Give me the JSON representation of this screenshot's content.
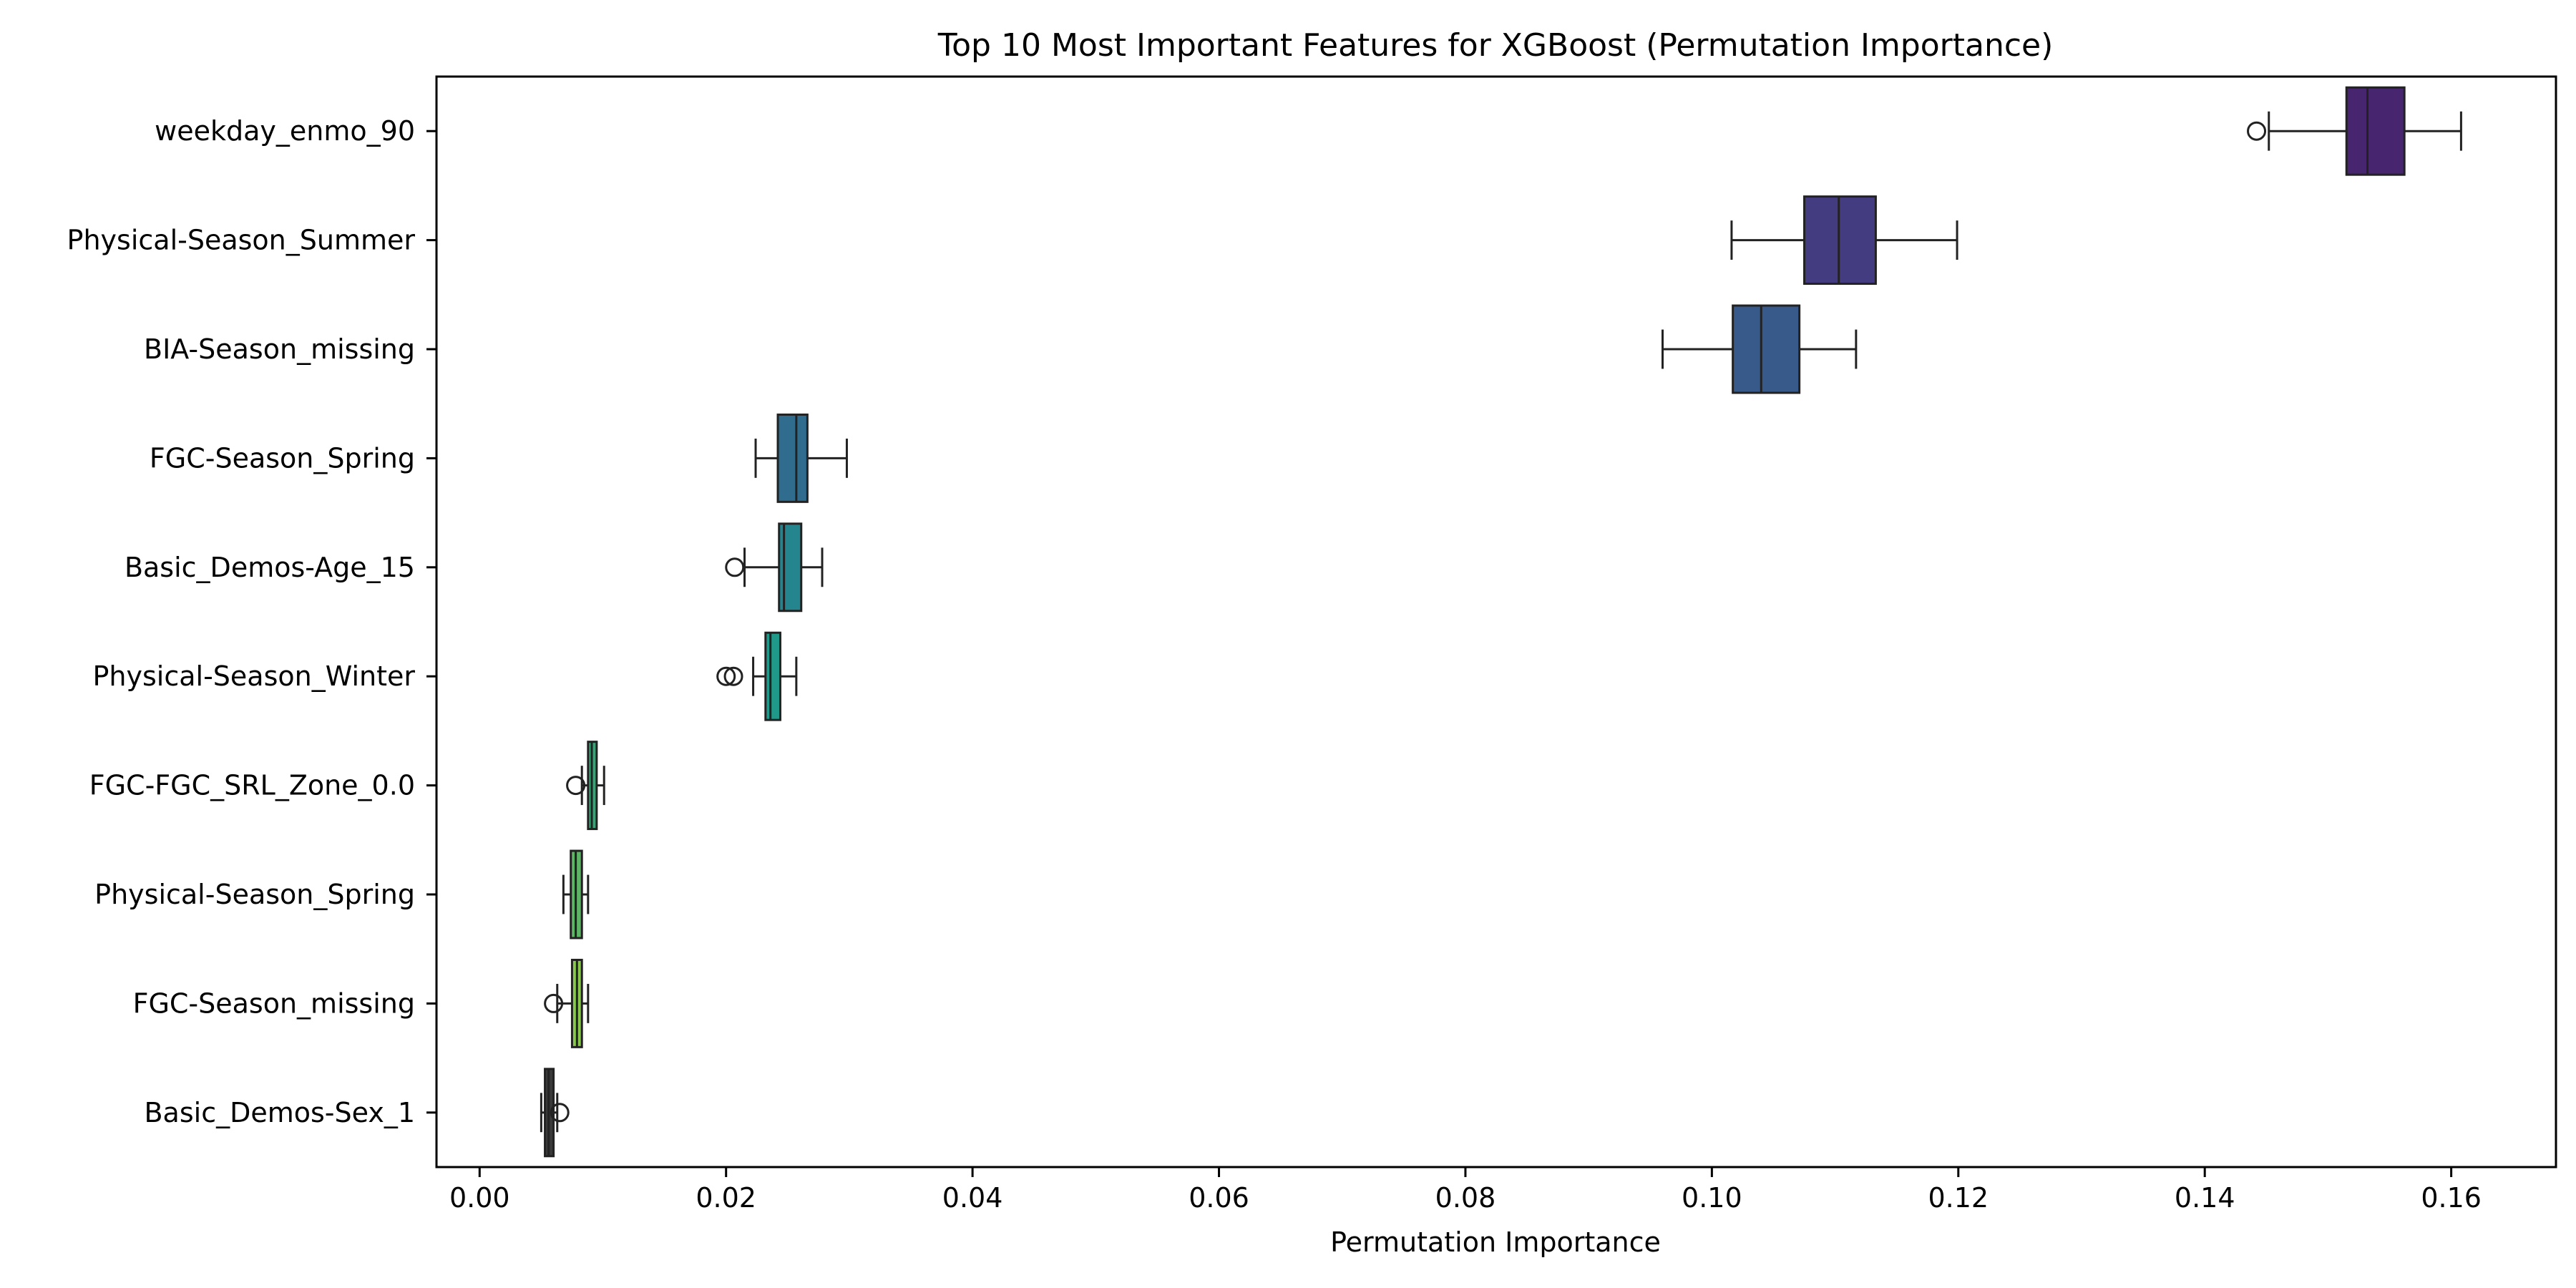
{
  "chart_data": {
    "type": "boxplot",
    "title": "Top 10 Most Important Features for XGBoost (Permutation Importance)",
    "xlabel": "Permutation Importance",
    "ylabel": "",
    "xlim": [
      -0.0035,
      0.1685
    ],
    "xticks": [
      0.0,
      0.02,
      0.04,
      0.06,
      0.08,
      0.1,
      0.12,
      0.14,
      0.16
    ],
    "xtick_labels": [
      "0.00",
      "0.02",
      "0.04",
      "0.06",
      "0.08",
      "0.10",
      "0.12",
      "0.14",
      "0.16"
    ],
    "grid": false,
    "orientation": "horizontal",
    "categories": [
      "weekday_enmo_90",
      "Physical-Season_Summer",
      "BIA-Season_missing",
      "FGC-Season_Spring",
      "Basic_Demos-Age_15",
      "Physical-Season_Winter",
      "FGC-FGC_SRL_Zone_0.0",
      "Physical-Season_Spring",
      "FGC-Season_missing",
      "Basic_Demos-Sex_1"
    ],
    "boxes": [
      {
        "whisker_low": 0.1452,
        "q1": 0.1515,
        "median": 0.1532,
        "q3": 0.1562,
        "whisker_high": 0.1608,
        "outliers": [
          0.1442
        ],
        "color": "#47266f"
      },
      {
        "whisker_low": 0.1016,
        "q1": 0.1075,
        "median": 0.1103,
        "q3": 0.1133,
        "whisker_high": 0.1199,
        "outliers": [],
        "color": "#443c81"
      },
      {
        "whisker_low": 0.096,
        "q1": 0.1017,
        "median": 0.104,
        "q3": 0.1071,
        "whisker_high": 0.1117,
        "outliers": [],
        "color": "#375a8b"
      },
      {
        "whisker_low": 0.0224,
        "q1": 0.0242,
        "median": 0.0257,
        "q3": 0.0266,
        "whisker_high": 0.0298,
        "outliers": [],
        "color": "#2f6c8e"
      },
      {
        "whisker_low": 0.0215,
        "q1": 0.0243,
        "median": 0.0247,
        "q3": 0.0261,
        "whisker_high": 0.0278,
        "outliers": [
          0.0207
        ],
        "color": "#25858e"
      },
      {
        "whisker_low": 0.0222,
        "q1": 0.0232,
        "median": 0.0236,
        "q3": 0.0244,
        "whisker_high": 0.0257,
        "outliers": [
          0.02,
          0.0206
        ],
        "color": "#1f9a8a"
      },
      {
        "whisker_low": 0.0083,
        "q1": 0.0088,
        "median": 0.0091,
        "q3": 0.0095,
        "whisker_high": 0.0101,
        "outliers": [
          0.0078
        ],
        "color": "#32a675"
      },
      {
        "whisker_low": 0.0068,
        "q1": 0.0074,
        "median": 0.0078,
        "q3": 0.0083,
        "whisker_high": 0.0088,
        "outliers": [],
        "color": "#5db565"
      },
      {
        "whisker_low": 0.0063,
        "q1": 0.0075,
        "median": 0.0079,
        "q3": 0.0083,
        "whisker_high": 0.0088,
        "outliers": [
          0.006
        ],
        "color": "#89c94b"
      },
      {
        "whisker_low": 0.005,
        "q1": 0.0053,
        "median": 0.0056,
        "q3": 0.006,
        "whisker_high": 0.0063,
        "outliers": [
          0.0065
        ],
        "color": "#3a3a3a"
      }
    ]
  }
}
